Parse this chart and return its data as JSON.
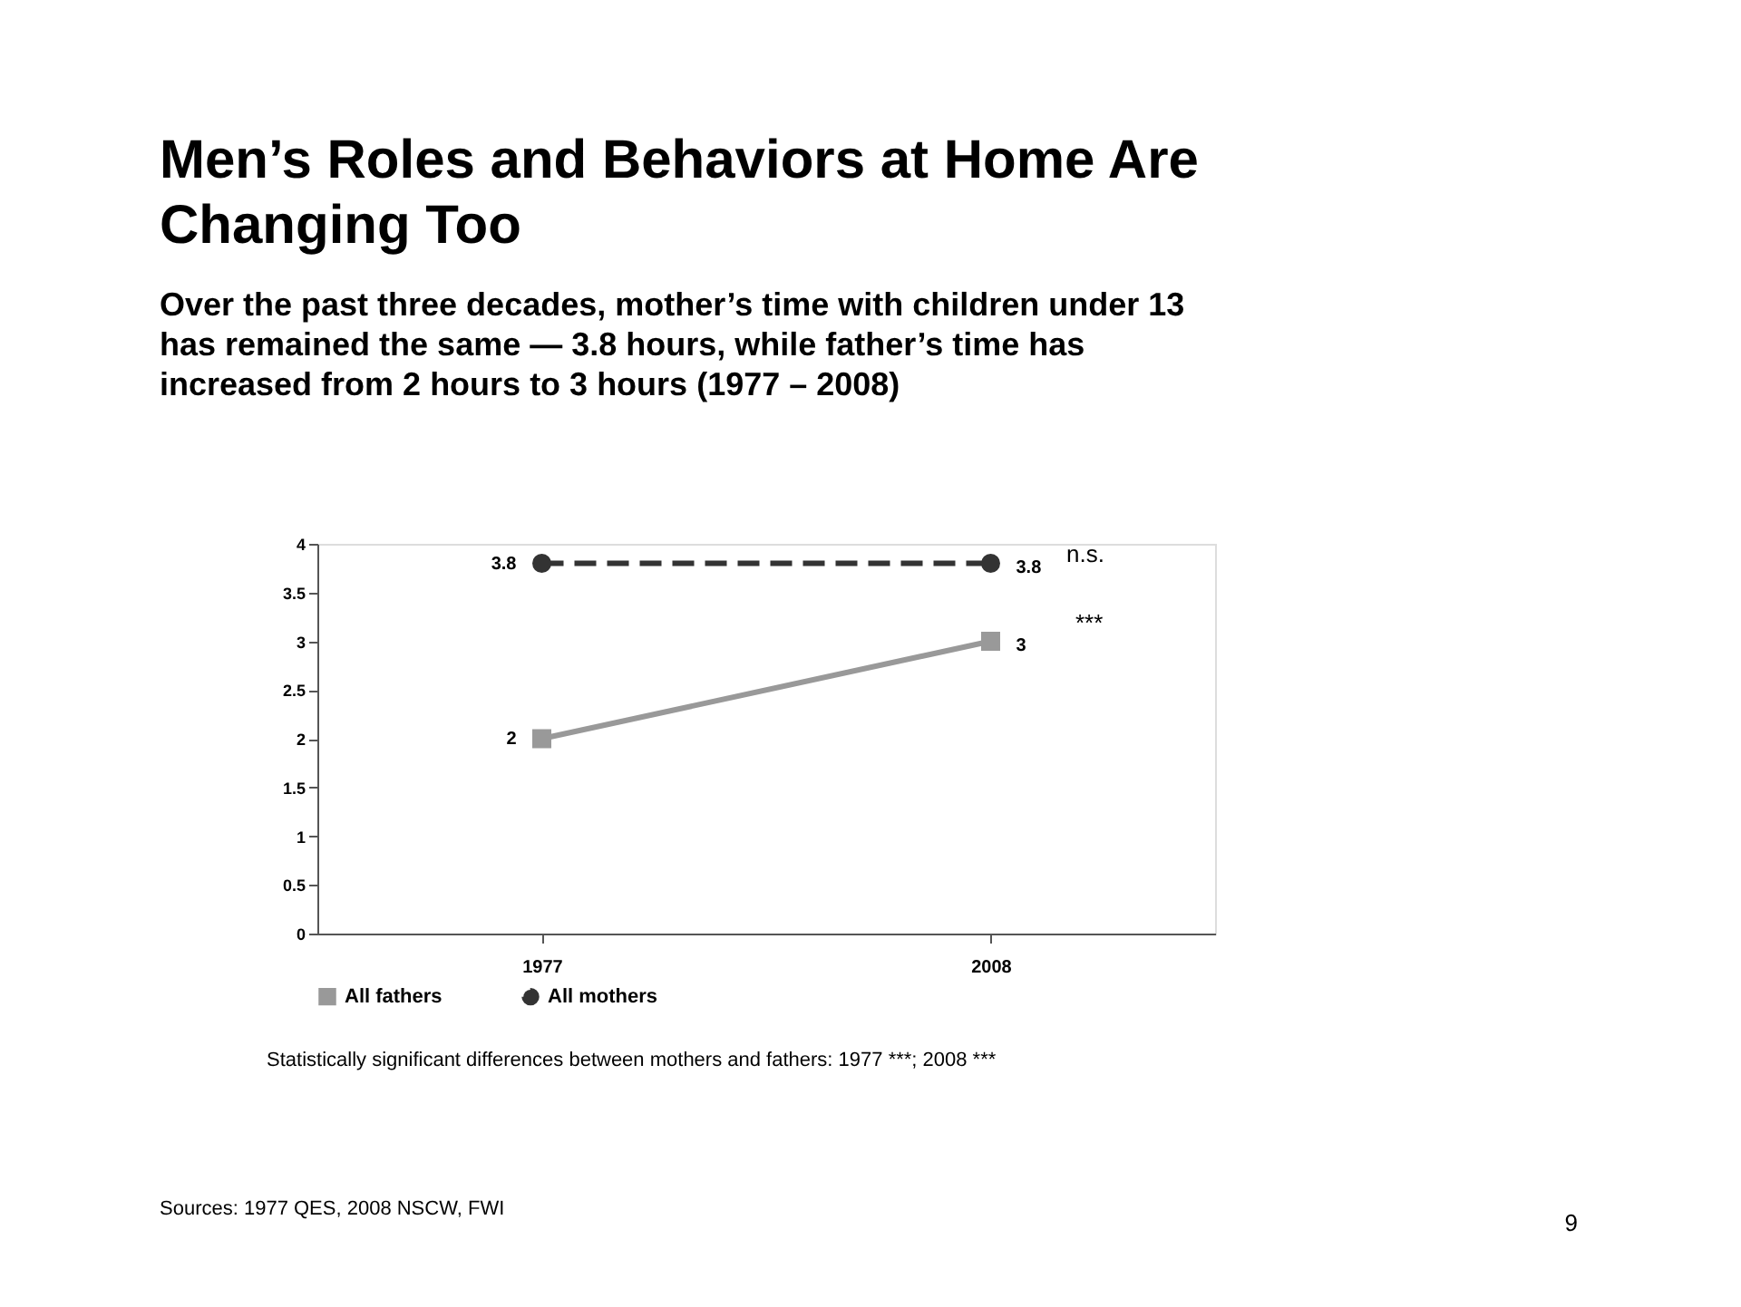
{
  "chart_data": {
    "type": "line",
    "title": "Men’s Roles and Behaviors at Home Are Changing Too",
    "subtitle": "Over the past three decades, mother’s time with children under 13 has remained the same — 3.8 hours, while father’s time has increased from 2 hours to 3 hours (1977 – 2008)",
    "categories": [
      "1977",
      "2008"
    ],
    "series": [
      {
        "name": "All fathers",
        "color": "#999999",
        "values": [
          2,
          3
        ],
        "marker": "square",
        "line_style": "solid"
      },
      {
        "name": "All mothers",
        "color": "#333333",
        "values": [
          3.8,
          3.8
        ],
        "marker": "circle",
        "line_style": "dashed"
      }
    ],
    "ylim": [
      0,
      4
    ],
    "yticks": [
      0,
      0.5,
      1,
      1.5,
      2,
      2.5,
      3,
      3.5,
      4
    ],
    "grid": false,
    "legend": "bottom",
    "data_labels": true,
    "annotations": [
      "n.s.",
      "***",
      "Statistically significant differences between mothers and fathers: 1977 ***; 2008 ***",
      "Sources: 1977 QES, 2008 NSCW, FWI",
      "9"
    ]
  }
}
